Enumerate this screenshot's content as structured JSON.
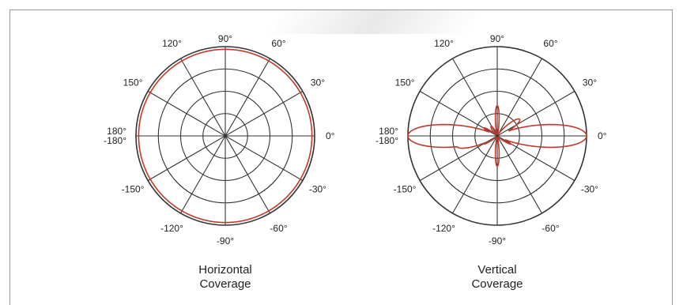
{
  "chart_data": [
    {
      "type": "polar",
      "caption": [
        "Horizontal",
        "Coverage"
      ],
      "angle_labels": [
        {
          "angle": 0,
          "text": "0°"
        },
        {
          "angle": 30,
          "text": "30°"
        },
        {
          "angle": 60,
          "text": "60°"
        },
        {
          "angle": 90,
          "text": "90°"
        },
        {
          "angle": 120,
          "text": "120°"
        },
        {
          "angle": 150,
          "text": "150°"
        },
        {
          "angle": 180,
          "text": "180°\n-180°"
        },
        {
          "angle": -150,
          "text": "-150°"
        },
        {
          "angle": -120,
          "text": "-120°"
        },
        {
          "angle": -90,
          "text": "-90°"
        },
        {
          "angle": -60,
          "text": "-60°"
        },
        {
          "angle": -30,
          "text": "-30°"
        }
      ],
      "radial_rings": [
        0.25,
        0.5,
        0.75,
        1.0
      ],
      "spoke_step_deg": 30,
      "series": [
        {
          "color": "#c0392b",
          "pattern": "omnidirectional",
          "gain": [
            [
              0,
              0.97
            ],
            [
              90,
              0.97
            ],
            [
              180,
              0.97
            ],
            [
              270,
              0.97
            ]
          ]
        }
      ]
    },
    {
      "type": "polar",
      "caption": [
        "Vertical",
        "Coverage"
      ],
      "angle_labels": [
        {
          "angle": 0,
          "text": "0°"
        },
        {
          "angle": 30,
          "text": "30°"
        },
        {
          "angle": 60,
          "text": "60°"
        },
        {
          "angle": 90,
          "text": "90°"
        },
        {
          "angle": 120,
          "text": "120°"
        },
        {
          "angle": 150,
          "text": "150°"
        },
        {
          "angle": 180,
          "text": "180°\n-180°"
        },
        {
          "angle": -150,
          "text": "-150°"
        },
        {
          "angle": -120,
          "text": "-120°"
        },
        {
          "angle": -90,
          "text": "-90°"
        },
        {
          "angle": -60,
          "text": "-60°"
        },
        {
          "angle": -30,
          "text": "-30°"
        }
      ],
      "radial_rings": [
        0.25,
        0.5,
        0.75,
        1.0
      ],
      "spoke_step_deg": 30,
      "series": [
        {
          "color": "#c0392b",
          "pattern": "main lobes at 0° and 180°, side lobes near ±20° and ±160°, small lobes near ±60°"
        }
      ]
    }
  ]
}
